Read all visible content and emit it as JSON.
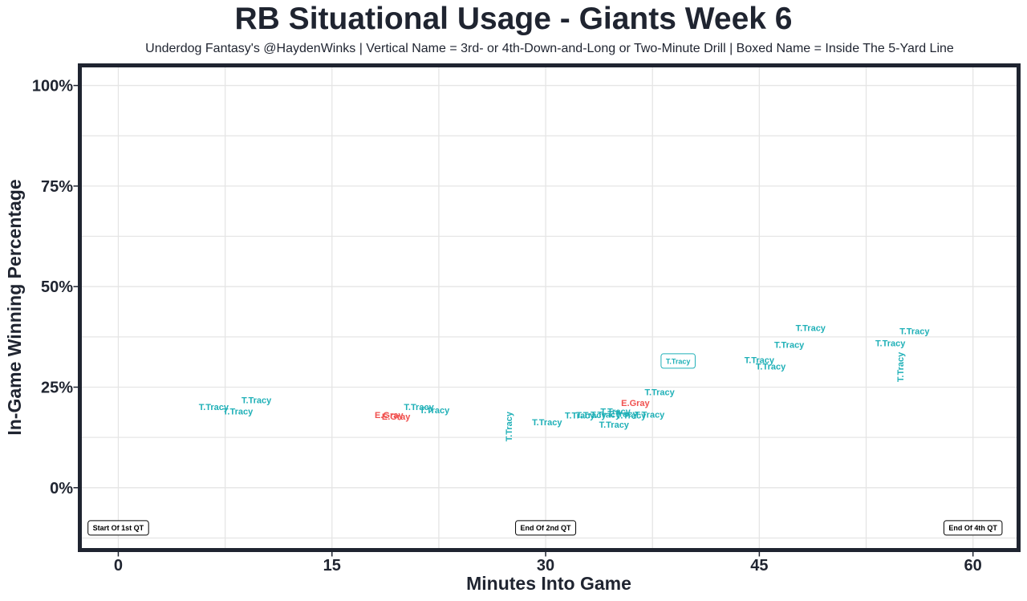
{
  "chart_data": {
    "type": "scatter",
    "title": "RB Situational Usage - Giants Week 6",
    "subtitle": "Underdog Fantasy's @HaydenWinks | Vertical Name = 3rd- or 4th-Down-and-Long or Two-Minute Drill | Boxed Name = Inside The 5-Yard Line",
    "xlabel": "Minutes Into Game",
    "ylabel": "In-Game Winning Percentage",
    "xlim": [
      -2.7,
      63.2
    ],
    "ylim": [
      -0.155,
      1.05
    ],
    "x_ticks": [
      0,
      15,
      30,
      45,
      60
    ],
    "x_tick_labels": [
      "0",
      "15",
      "30",
      "45",
      "60"
    ],
    "y_ticks": [
      0,
      0.25,
      0.5,
      0.75,
      1.0
    ],
    "y_tick_labels": [
      "0%",
      "25%",
      "50%",
      "75%",
      "100%"
    ],
    "grid": true,
    "colors": {
      "T.Tracy": "#1fb0b7",
      "E.Gray": "#f0504e",
      "text": "#1f2430",
      "frame": "#1f2430",
      "grid": "#e5e5e5"
    },
    "points": [
      {
        "label": "T.Tracy",
        "x": 6.7,
        "y": 0.201,
        "style": "normal"
      },
      {
        "label": "T.Tracy",
        "x": 9.7,
        "y": 0.218,
        "style": "normal"
      },
      {
        "label": "T.Tracy",
        "x": 8.4,
        "y": 0.19,
        "style": "normal"
      },
      {
        "label": "E.Gray",
        "x": 19.0,
        "y": 0.181,
        "style": "normal"
      },
      {
        "label": "E.Gray",
        "x": 19.5,
        "y": 0.177,
        "style": "normal"
      },
      {
        "label": "T.Tracy",
        "x": 21.1,
        "y": 0.201,
        "style": "normal"
      },
      {
        "label": "T.Tracy",
        "x": 22.2,
        "y": 0.193,
        "style": "normal"
      },
      {
        "label": "T.Tracy",
        "x": 27.4,
        "y": 0.152,
        "style": "vertical"
      },
      {
        "label": "T.Tracy",
        "x": 30.1,
        "y": 0.163,
        "style": "normal"
      },
      {
        "label": "T.Tracy",
        "x": 32.4,
        "y": 0.18,
        "style": "normal"
      },
      {
        "label": "T.Tracy",
        "x": 33.2,
        "y": 0.181,
        "style": "normal"
      },
      {
        "label": "T.Tracy",
        "x": 34.2,
        "y": 0.182,
        "style": "normal"
      },
      {
        "label": "T.Tracy",
        "x": 34.9,
        "y": 0.19,
        "style": "normal"
      },
      {
        "label": "T.Tracy",
        "x": 35.4,
        "y": 0.184,
        "style": "normal"
      },
      {
        "label": "T.Tracy",
        "x": 36.0,
        "y": 0.18,
        "style": "normal"
      },
      {
        "label": "T.Tracy",
        "x": 37.3,
        "y": 0.182,
        "style": "normal"
      },
      {
        "label": "T.Tracy",
        "x": 34.8,
        "y": 0.157,
        "style": "normal"
      },
      {
        "label": "E.Gray",
        "x": 36.3,
        "y": 0.211,
        "style": "normal"
      },
      {
        "label": "T.Tracy",
        "x": 38.0,
        "y": 0.238,
        "style": "normal"
      },
      {
        "label": "T.Tracy",
        "x": 39.3,
        "y": 0.315,
        "style": "boxed"
      },
      {
        "label": "T.Tracy",
        "x": 45.0,
        "y": 0.318,
        "style": "normal"
      },
      {
        "label": "T.Tracy",
        "x": 45.8,
        "y": 0.302,
        "style": "normal"
      },
      {
        "label": "T.Tracy",
        "x": 47.1,
        "y": 0.356,
        "style": "normal"
      },
      {
        "label": "T.Tracy",
        "x": 48.6,
        "y": 0.398,
        "style": "normal"
      },
      {
        "label": "T.Tracy",
        "x": 54.2,
        "y": 0.36,
        "style": "normal"
      },
      {
        "label": "T.Tracy",
        "x": 55.9,
        "y": 0.39,
        "style": "normal"
      },
      {
        "label": "T.Tracy",
        "x": 54.9,
        "y": 0.3,
        "style": "vertical"
      }
    ],
    "quarter_markers": [
      {
        "label": "Start Of 1st QT",
        "x": 0.0,
        "y": -0.1
      },
      {
        "label": "End Of 2nd QT",
        "x": 30.0,
        "y": -0.1
      },
      {
        "label": "End Of 4th QT",
        "x": 60.0,
        "y": -0.1
      }
    ]
  }
}
